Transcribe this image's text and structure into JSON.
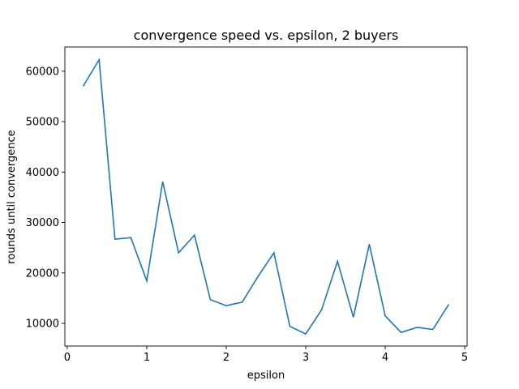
{
  "chart_data": {
    "type": "line",
    "title": "convergence speed vs. epsilon, 2 buyers",
    "xlabel": "epsilon",
    "ylabel": "rounds until convergence",
    "xlim": [
      -0.03,
      5.03
    ],
    "ylim": [
      5500,
      64800
    ],
    "x_ticks": [
      0,
      1,
      2,
      3,
      4,
      5
    ],
    "y_ticks": [
      10000,
      20000,
      30000,
      40000,
      50000,
      60000
    ],
    "grid": false,
    "line_color": "#1f77b4",
    "series": [
      {
        "x": [
          0.2,
          0.4,
          0.6,
          0.8,
          1.0,
          1.2,
          1.4,
          1.6,
          1.8,
          2.0,
          2.2,
          2.4,
          2.6,
          2.8,
          3.0,
          3.2,
          3.4,
          3.6,
          3.8,
          4.0,
          4.2,
          4.4,
          4.6,
          4.8
        ],
        "y": [
          57000,
          62300,
          26700,
          27000,
          18400,
          38100,
          24000,
          27500,
          14700,
          13500,
          14200,
          19300,
          24000,
          9400,
          7900,
          12700,
          22300,
          11200,
          25700,
          11500,
          8200,
          9200,
          8800,
          13800
        ]
      }
    ]
  }
}
